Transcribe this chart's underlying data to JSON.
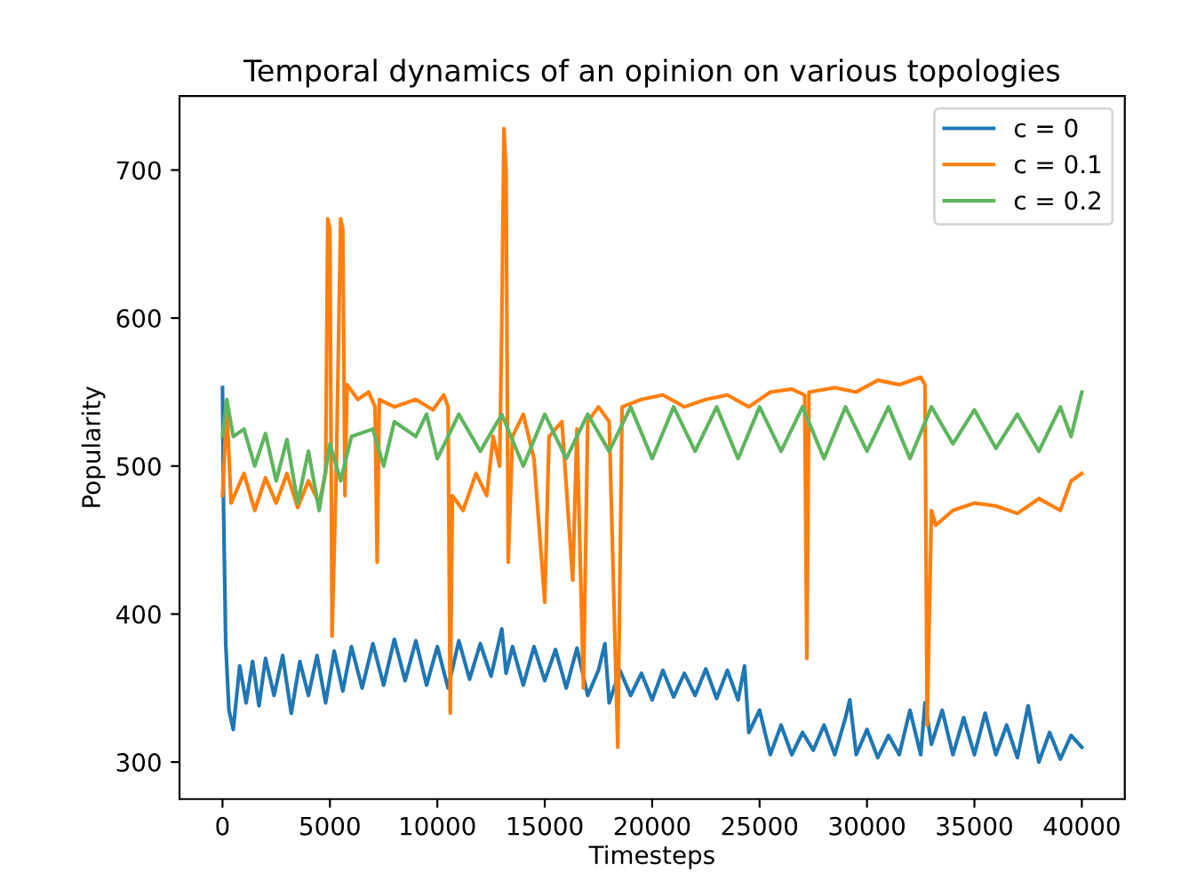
{
  "chart_data": {
    "type": "line",
    "title": "Temporal dynamics of an opinion on various topologies",
    "xlabel": "Timesteps",
    "ylabel": "Popularity",
    "xlim": [
      -2000,
      42000
    ],
    "ylim": [
      275,
      750
    ],
    "xticks": [
      0,
      5000,
      10000,
      15000,
      20000,
      25000,
      30000,
      35000,
      40000
    ],
    "yticks": [
      300,
      400,
      500,
      600,
      700
    ],
    "grid": false,
    "legend": "top right",
    "marker": "none",
    "line_style": "solid",
    "series": [
      {
        "name": "c = 0",
        "color": "#1f77b4",
        "x": [
          0,
          50,
          150,
          300,
          500,
          800,
          1100,
          1400,
          1700,
          2000,
          2400,
          2800,
          3200,
          3600,
          4000,
          4400,
          4800,
          5200,
          5600,
          6000,
          6500,
          7000,
          7500,
          8000,
          8500,
          9000,
          9500,
          10000,
          10500,
          11000,
          11500,
          12000,
          12500,
          13000,
          13200,
          13500,
          14000,
          14500,
          15000,
          15500,
          16000,
          16500,
          17000,
          17500,
          17800,
          18000,
          18500,
          19000,
          19500,
          20000,
          20500,
          21000,
          21500,
          22000,
          22500,
          23000,
          23500,
          24000,
          24300,
          24500,
          25000,
          25500,
          26000,
          26500,
          27000,
          27500,
          28000,
          28500,
          29000,
          29200,
          29500,
          30000,
          30500,
          31000,
          31500,
          32000,
          32500,
          32700,
          33000,
          33500,
          34000,
          34500,
          35000,
          35500,
          36000,
          36500,
          37000,
          37500,
          38000,
          38500,
          39000,
          39500,
          40000
        ],
        "values": [
          553,
          470,
          380,
          335,
          322,
          365,
          340,
          368,
          338,
          370,
          345,
          372,
          333,
          368,
          345,
          372,
          340,
          375,
          348,
          378,
          350,
          380,
          352,
          383,
          355,
          382,
          352,
          378,
          350,
          382,
          356,
          380,
          358,
          390,
          360,
          378,
          352,
          378,
          355,
          376,
          350,
          377,
          345,
          362,
          380,
          340,
          362,
          345,
          360,
          342,
          362,
          344,
          360,
          345,
          363,
          343,
          362,
          342,
          365,
          320,
          335,
          305,
          325,
          305,
          320,
          308,
          325,
          305,
          330,
          342,
          305,
          322,
          303,
          318,
          305,
          335,
          305,
          340,
          312,
          335,
          305,
          330,
          305,
          333,
          305,
          325,
          303,
          338,
          300,
          320,
          302,
          318,
          310
        ]
      },
      {
        "name": "c = 0.1",
        "color": "#ff7f0e",
        "x": [
          0,
          200,
          400,
          1000,
          1500,
          2000,
          2500,
          3000,
          3500,
          4000,
          4500,
          4800,
          4900,
          5000,
          5100,
          5300,
          5500,
          5600,
          5700,
          5800,
          6300,
          6800,
          7100,
          7200,
          7300,
          8000,
          9000,
          9800,
          10300,
          10500,
          10600,
          10700,
          11200,
          11800,
          12300,
          12600,
          12900,
          13000,
          13100,
          13200,
          13300,
          13500,
          14000,
          14500,
          15000,
          15200,
          15800,
          16300,
          16500,
          16800,
          17000,
          17500,
          18000,
          18400,
          18600,
          19500,
          20500,
          21500,
          22500,
          23500,
          24500,
          25500,
          26500,
          27100,
          27200,
          27300,
          28500,
          29500,
          30500,
          31500,
          32500,
          32700,
          32800,
          33000,
          33200,
          34000,
          35000,
          36000,
          37000,
          38000,
          39000,
          39500,
          40000
        ],
        "values": [
          480,
          540,
          475,
          495,
          470,
          492,
          475,
          495,
          472,
          490,
          475,
          495,
          667,
          660,
          385,
          500,
          667,
          660,
          480,
          555,
          545,
          550,
          540,
          435,
          545,
          540,
          545,
          538,
          548,
          540,
          333,
          480,
          470,
          495,
          480,
          520,
          500,
          595,
          728,
          700,
          435,
          520,
          535,
          505,
          408,
          520,
          530,
          423,
          525,
          350,
          530,
          540,
          530,
          310,
          540,
          545,
          548,
          540,
          545,
          548,
          540,
          550,
          552,
          548,
          370,
          550,
          553,
          550,
          558,
          555,
          560,
          555,
          325,
          470,
          460,
          470,
          475,
          473,
          468,
          478,
          470,
          490,
          495
        ]
      },
      {
        "name": "c = 0.2",
        "color": "#5fb55f",
        "x": [
          0,
          200,
          500,
          1000,
          1500,
          2000,
          2500,
          3000,
          3500,
          4000,
          4500,
          5000,
          5500,
          6000,
          7000,
          7500,
          8000,
          9000,
          9500,
          10000,
          11000,
          12000,
          13000,
          14000,
          15000,
          16000,
          17000,
          18000,
          19000,
          20000,
          21000,
          22000,
          23000,
          24000,
          25000,
          26000,
          27000,
          28000,
          29000,
          30000,
          31000,
          32000,
          33000,
          34000,
          35000,
          36000,
          37000,
          38000,
          39000,
          39500,
          40000
        ],
        "values": [
          520,
          545,
          520,
          525,
          500,
          522,
          490,
          518,
          475,
          510,
          470,
          515,
          490,
          520,
          525,
          500,
          530,
          520,
          535,
          505,
          535,
          510,
          535,
          500,
          535,
          505,
          535,
          510,
          540,
          505,
          540,
          510,
          540,
          505,
          540,
          510,
          540,
          505,
          540,
          510,
          540,
          505,
          540,
          515,
          538,
          512,
          535,
          510,
          540,
          520,
          550
        ]
      }
    ]
  }
}
